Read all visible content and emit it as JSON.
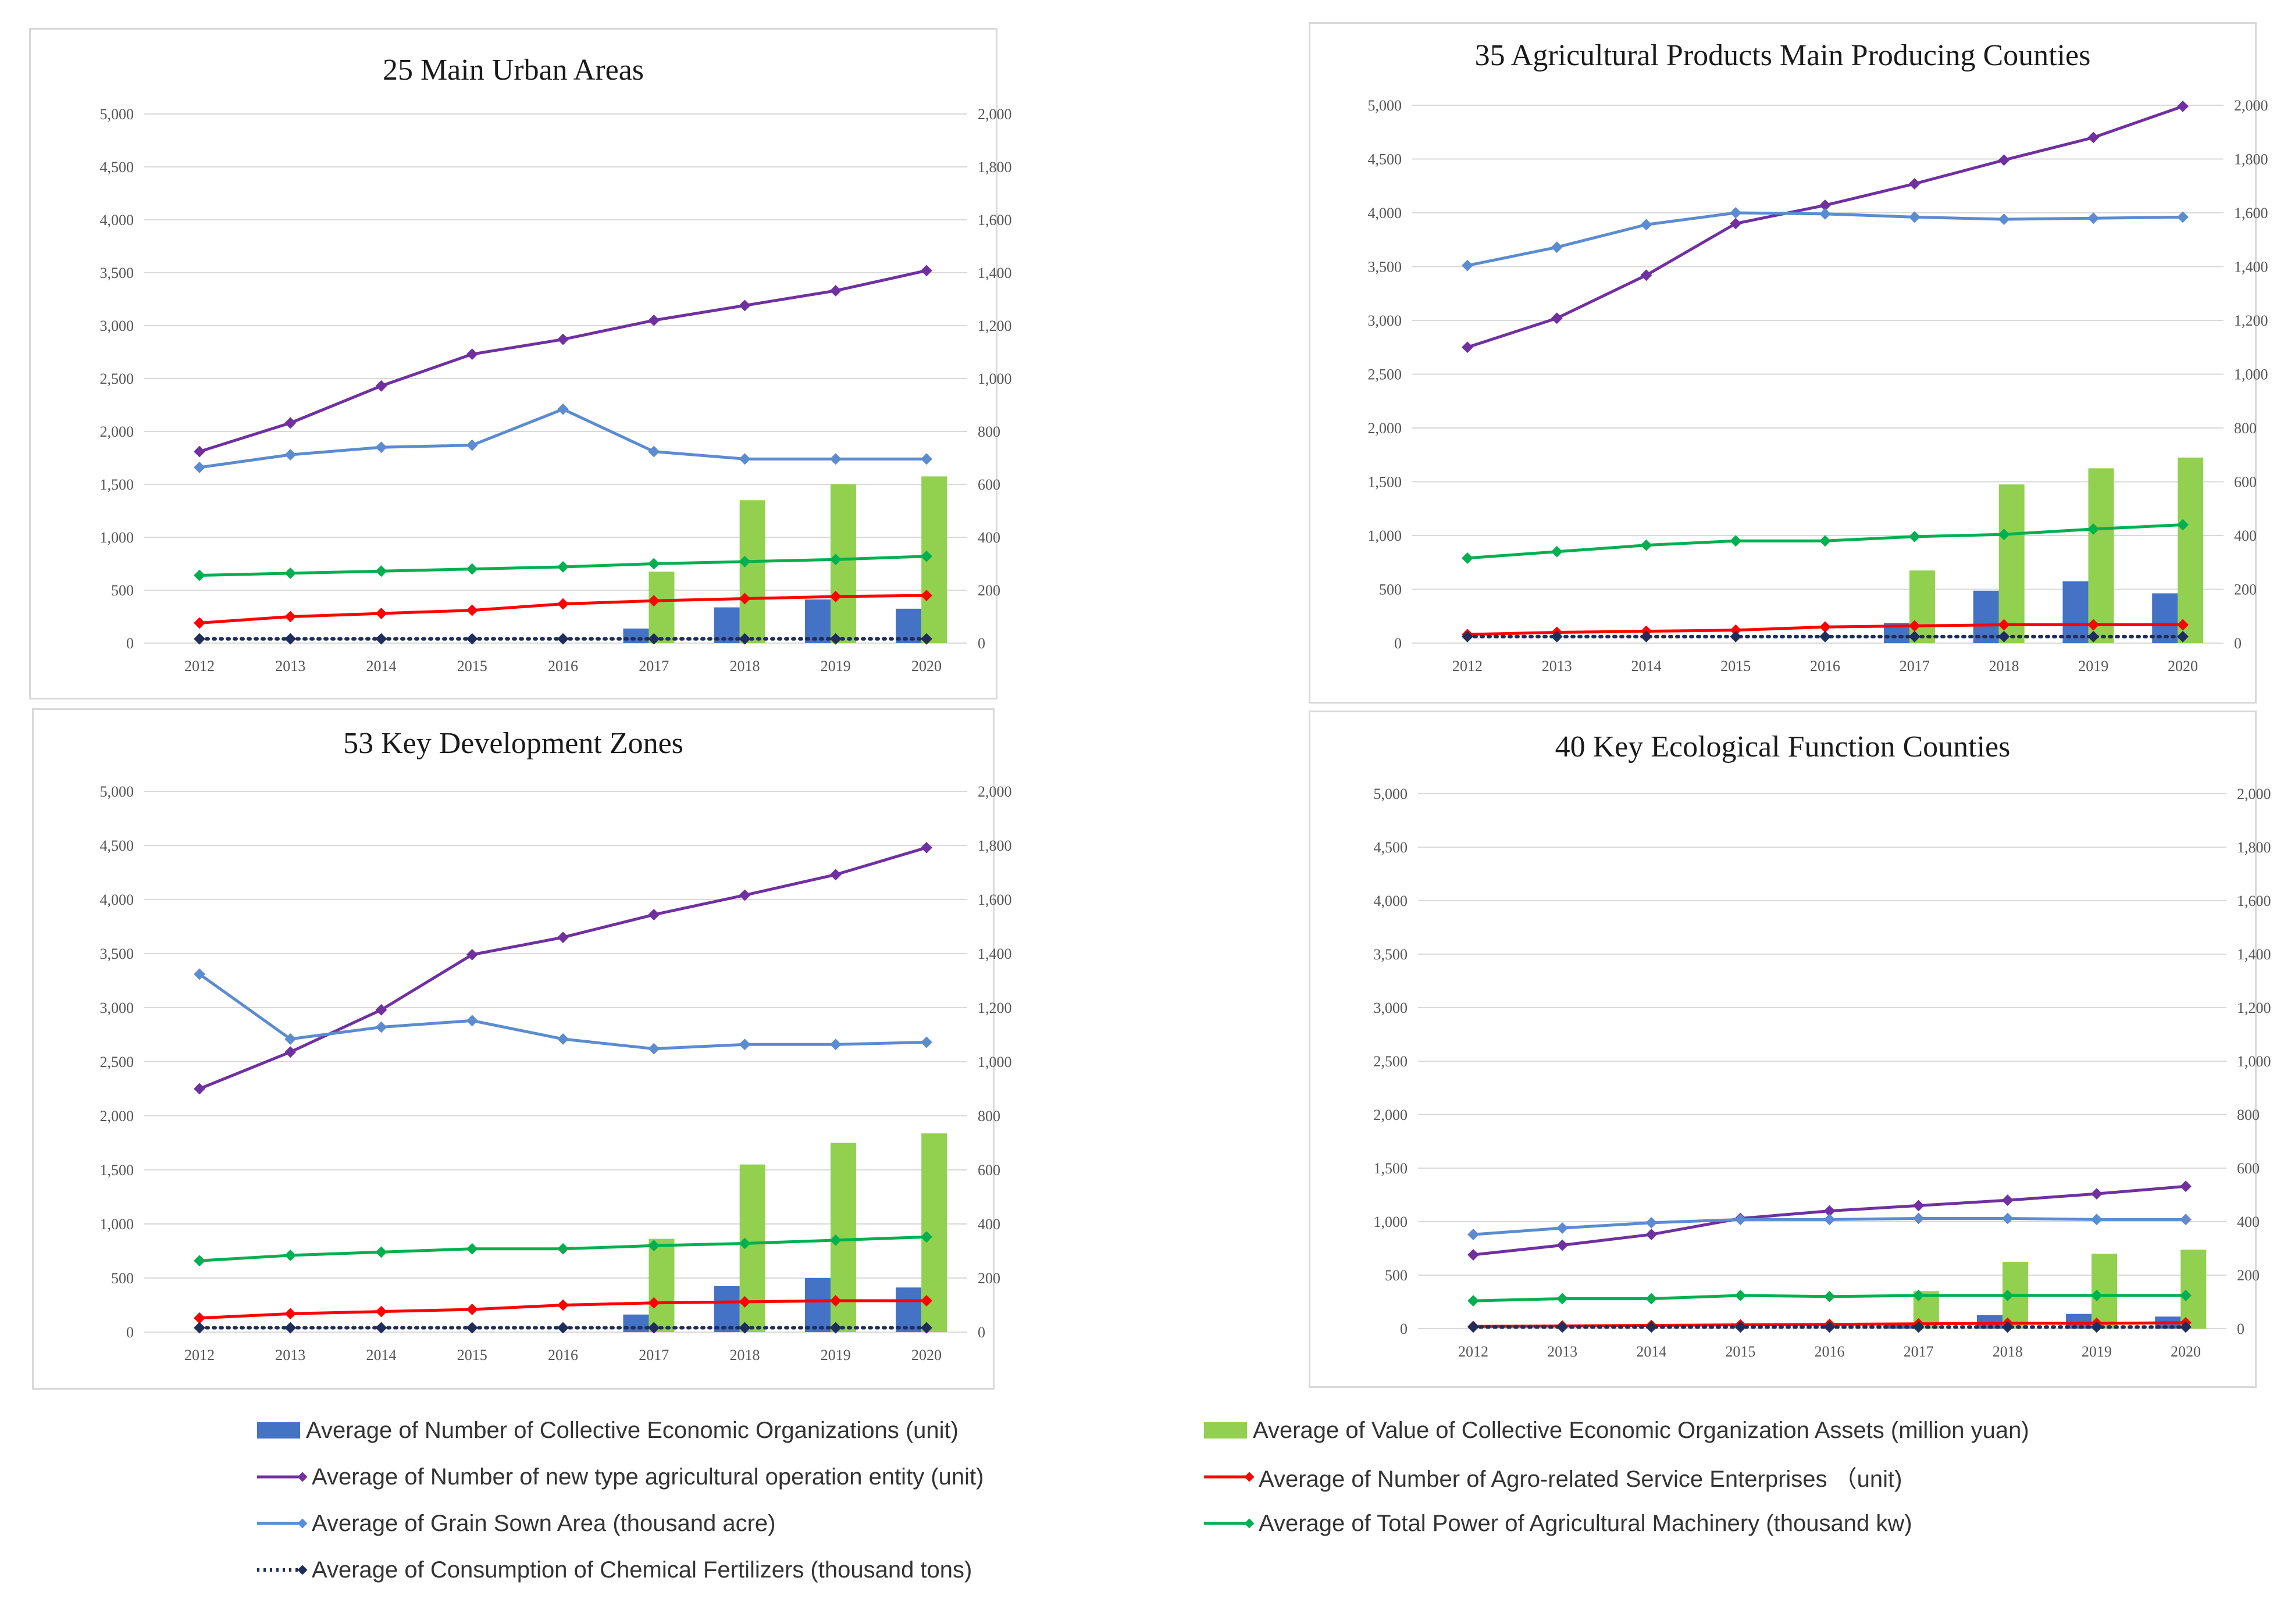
{
  "colors": {
    "collective_orgs": "#4472c4",
    "assets": "#92d050",
    "new_entity": "#7030a0",
    "agro_service": "#ff0000",
    "grain_area": "#5b8bd0",
    "machinery": "#00b050",
    "fertilizers": "#1f2d5c"
  },
  "legend": [
    {
      "key": "collective_orgs",
      "label": "Average of Number of Collective Economic Organizations (unit)",
      "marker": "bar"
    },
    {
      "key": "assets",
      "label": "Average of Value of Collective Economic Organization Assets (million yuan)",
      "marker": "bar"
    },
    {
      "key": "new_entity",
      "label": "Average of Number of new type agricultural operation entity (unit)",
      "marker": "line"
    },
    {
      "key": "agro_service",
      "label": "Average of Number of Agro-related Service Enterprises （unit)",
      "marker": "line"
    },
    {
      "key": "grain_area",
      "label": "Average of Grain Sown Area (thousand acre)",
      "marker": "line"
    },
    {
      "key": "machinery",
      "label": "Average of Total Power of Agricultural Machinery (thousand kw)",
      "marker": "line"
    },
    {
      "key": "fertilizers",
      "label": "Average of Consumption of Chemical Fertilizers (thousand tons)",
      "marker": "dotted"
    }
  ],
  "chart_data": [
    {
      "type": "bar",
      "title": "25 Main Urban Areas",
      "categories": [
        "2012",
        "2013",
        "2014",
        "2015",
        "2016",
        "2017",
        "2018",
        "2019",
        "2020"
      ],
      "left_axis": {
        "range": [
          0,
          5000
        ],
        "ticks": [
          "0",
          "500",
          "1,000",
          "1,500",
          "2,000",
          "2,500",
          "3,000",
          "3,500",
          "4,000",
          "4,500",
          "5,000"
        ]
      },
      "right_axis": {
        "range": [
          0,
          2000
        ],
        "ticks": [
          "0",
          "200",
          "400",
          "600",
          "800",
          "1,000",
          "1,200",
          "1,400",
          "1,600",
          "1,800",
          "2,000"
        ]
      },
      "series": [
        {
          "key": "collective_orgs",
          "type": "bar",
          "axis": "right",
          "values": [
            null,
            null,
            null,
            null,
            null,
            55,
            135,
            165,
            130
          ]
        },
        {
          "key": "assets",
          "type": "bar",
          "axis": "right",
          "values": [
            null,
            null,
            null,
            null,
            null,
            270,
            540,
            600,
            630
          ]
        },
        {
          "key": "new_entity",
          "type": "line",
          "axis": "left",
          "values": [
            1810,
            2080,
            2430,
            2730,
            2870,
            3050,
            3190,
            3330,
            3520
          ]
        },
        {
          "key": "grain_area",
          "type": "line",
          "axis": "left",
          "values": [
            1660,
            1780,
            1850,
            1870,
            2210,
            1810,
            1740,
            1740,
            1740
          ]
        },
        {
          "key": "machinery",
          "type": "line",
          "axis": "left",
          "values": [
            640,
            660,
            680,
            700,
            720,
            750,
            770,
            790,
            820
          ]
        },
        {
          "key": "agro_service",
          "type": "line",
          "axis": "left",
          "values": [
            190,
            250,
            280,
            310,
            370,
            400,
            420,
            440,
            450
          ]
        },
        {
          "key": "fertilizers",
          "type": "line",
          "axis": "left",
          "values": [
            40,
            40,
            40,
            40,
            40,
            40,
            40,
            40,
            40
          ]
        }
      ]
    },
    {
      "type": "bar",
      "title": "35 Agricultural Products Main Producing Counties",
      "categories": [
        "2012",
        "2013",
        "2014",
        "2015",
        "2016",
        "2017",
        "2018",
        "2019",
        "2020"
      ],
      "left_axis": {
        "range": [
          0,
          5000
        ],
        "ticks": [
          "0",
          "500",
          "1,000",
          "1,500",
          "2,000",
          "2,500",
          "3,000",
          "3,500",
          "4,000",
          "4,500",
          "5,000"
        ]
      },
      "right_axis": {
        "range": [
          0,
          2000
        ],
        "ticks": [
          "0",
          "200",
          "400",
          "600",
          "800",
          "1,000",
          "1,200",
          "1,400",
          "1,600",
          "1,800",
          "2,000"
        ]
      },
      "series": [
        {
          "key": "collective_orgs",
          "type": "bar",
          "axis": "right",
          "values": [
            null,
            null,
            null,
            null,
            null,
            75,
            195,
            230,
            185
          ]
        },
        {
          "key": "assets",
          "type": "bar",
          "axis": "right",
          "values": [
            null,
            null,
            null,
            null,
            null,
            270,
            590,
            650,
            690
          ]
        },
        {
          "key": "new_entity",
          "type": "line",
          "axis": "left",
          "values": [
            2750,
            3020,
            3420,
            3900,
            4070,
            4270,
            4490,
            4700,
            4990
          ]
        },
        {
          "key": "grain_area",
          "type": "line",
          "axis": "left",
          "values": [
            3510,
            3680,
            3890,
            4000,
            3990,
            3960,
            3940,
            3950,
            3960
          ]
        },
        {
          "key": "machinery",
          "type": "line",
          "axis": "left",
          "values": [
            790,
            850,
            910,
            950,
            950,
            990,
            1010,
            1060,
            1100
          ]
        },
        {
          "key": "agro_service",
          "type": "line",
          "axis": "left",
          "values": [
            80,
            100,
            110,
            120,
            150,
            160,
            170,
            170,
            170
          ]
        },
        {
          "key": "fertilizers",
          "type": "line",
          "axis": "left",
          "values": [
            60,
            60,
            60,
            60,
            60,
            60,
            60,
            60,
            60
          ]
        }
      ]
    },
    {
      "type": "bar",
      "title": "53 Key Development Zones",
      "categories": [
        "2012",
        "2013",
        "2014",
        "2015",
        "2016",
        "2017",
        "2018",
        "2019",
        "2020"
      ],
      "left_axis": {
        "range": [
          0,
          5000
        ],
        "ticks": [
          "0",
          "500",
          "1,000",
          "1,500",
          "2,000",
          "2,500",
          "3,000",
          "3,500",
          "4,000",
          "4,500",
          "5,000"
        ]
      },
      "right_axis": {
        "range": [
          0,
          2000
        ],
        "ticks": [
          "0",
          "200",
          "400",
          "600",
          "800",
          "1,000",
          "1,200",
          "1,400",
          "1,600",
          "1,800",
          "2,000"
        ]
      },
      "series": [
        {
          "key": "collective_orgs",
          "type": "bar",
          "axis": "right",
          "values": [
            null,
            null,
            null,
            null,
            null,
            65,
            170,
            200,
            165
          ]
        },
        {
          "key": "assets",
          "type": "bar",
          "axis": "right",
          "values": [
            null,
            null,
            null,
            null,
            null,
            345,
            620,
            700,
            735
          ]
        },
        {
          "key": "new_entity",
          "type": "line",
          "axis": "left",
          "values": [
            2250,
            2590,
            2980,
            3490,
            3650,
            3860,
            4040,
            4230,
            4480
          ]
        },
        {
          "key": "grain_area",
          "type": "line",
          "axis": "left",
          "values": [
            3310,
            2710,
            2820,
            2880,
            2710,
            2620,
            2660,
            2660,
            2680
          ]
        },
        {
          "key": "machinery",
          "type": "line",
          "axis": "left",
          "values": [
            660,
            710,
            740,
            770,
            770,
            800,
            820,
            850,
            880
          ]
        },
        {
          "key": "agro_service",
          "type": "line",
          "axis": "left",
          "values": [
            130,
            170,
            190,
            210,
            250,
            270,
            280,
            290,
            290
          ]
        },
        {
          "key": "fertilizers",
          "type": "line",
          "axis": "left",
          "values": [
            40,
            40,
            40,
            40,
            40,
            40,
            40,
            40,
            40
          ]
        }
      ]
    },
    {
      "type": "bar",
      "title": "40 Key Ecological Function  Counties",
      "categories": [
        "2012",
        "2013",
        "2014",
        "2015",
        "2016",
        "2017",
        "2018",
        "2019",
        "2020"
      ],
      "left_axis": {
        "range": [
          0,
          5000
        ],
        "ticks": [
          "0",
          "500",
          "1,000",
          "1,500",
          "2,000",
          "2,500",
          "3,000",
          "3,500",
          "4,000",
          "4,500",
          "5,000"
        ]
      },
      "right_axis": {
        "range": [
          0,
          2000
        ],
        "ticks": [
          "0",
          "200",
          "400",
          "600",
          "800",
          "1,000",
          "1,200",
          "1,400",
          "1,600",
          "1,800",
          "2,000"
        ]
      },
      "series": [
        {
          "key": "collective_orgs",
          "type": "bar",
          "axis": "right",
          "values": [
            null,
            null,
            null,
            null,
            null,
            15,
            50,
            55,
            45
          ]
        },
        {
          "key": "assets",
          "type": "bar",
          "axis": "right",
          "values": [
            null,
            null,
            null,
            null,
            null,
            140,
            250,
            280,
            295
          ]
        },
        {
          "key": "new_entity",
          "type": "line",
          "axis": "left",
          "values": [
            690,
            780,
            880,
            1030,
            1100,
            1150,
            1200,
            1260,
            1330
          ]
        },
        {
          "key": "grain_area",
          "type": "line",
          "axis": "left",
          "values": [
            880,
            940,
            990,
            1020,
            1020,
            1030,
            1030,
            1020,
            1020
          ]
        },
        {
          "key": "machinery",
          "type": "line",
          "axis": "left",
          "values": [
            260,
            280,
            280,
            310,
            300,
            310,
            310,
            310,
            310
          ]
        },
        {
          "key": "agro_service",
          "type": "line",
          "axis": "left",
          "values": [
            20,
            25,
            30,
            35,
            40,
            45,
            50,
            50,
            55
          ]
        },
        {
          "key": "fertilizers",
          "type": "line",
          "axis": "left",
          "values": [
            15,
            15,
            15,
            15,
            15,
            15,
            15,
            15,
            15
          ]
        }
      ]
    }
  ]
}
